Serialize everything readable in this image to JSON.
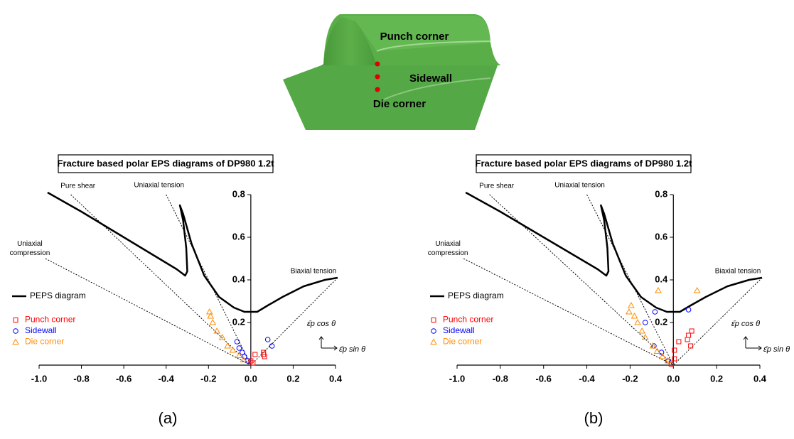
{
  "figure": {
    "labels": [
      "Punch corner",
      "Sidewall",
      "Die corner"
    ]
  },
  "captions": [
    "(a)",
    "(b)"
  ],
  "chart_data": [
    {
      "type": "scatter",
      "title": "Fracture based polar EPS diagrams of DP980 1.2t",
      "xlim": [
        -1.0,
        0.4
      ],
      "ylim": [
        0,
        0.8
      ],
      "xticks": [
        {
          "value": -1.0,
          "label": "-1.0"
        },
        -0.8,
        -0.6,
        -0.4,
        -0.2,
        {
          "value": 0,
          "label": "0.0"
        },
        0.2,
        0.4
      ],
      "yticks": [
        0.2,
        0.4,
        0.6,
        0.8
      ],
      "axis_labels": {
        "y": "ε̄p cos θ",
        "x": "ε̄p sin θ"
      },
      "reference_lines": [
        {
          "name": "Pure shear",
          "x": [
            -0.85,
            0
          ],
          "y": [
            0.8,
            0
          ]
        },
        {
          "name": "Uniaxial tension",
          "x": [
            -0.4,
            0
          ],
          "y": [
            0.8,
            0
          ]
        },
        {
          "name": "Uniaxial compression",
          "x": [
            -0.97,
            0
          ],
          "y": [
            0.5,
            0
          ]
        },
        {
          "name": "Biaxial tension",
          "x": [
            0.41,
            0
          ],
          "y": [
            0.41,
            0
          ]
        }
      ],
      "series": [
        {
          "name": "PEPS diagram",
          "color": "#000000",
          "marker": "line",
          "x": [
            -0.96,
            -0.8,
            -0.6,
            -0.45,
            -0.35,
            -0.31,
            -0.3,
            -0.305,
            -0.32,
            -0.335,
            -0.32,
            -0.28,
            -0.22,
            -0.15,
            -0.08,
            -0.03,
            0.0,
            0.03,
            0.08,
            0.15,
            0.25,
            0.35,
            0.41
          ],
          "y": [
            0.81,
            0.72,
            0.6,
            0.51,
            0.45,
            0.42,
            0.44,
            0.55,
            0.68,
            0.75,
            0.71,
            0.57,
            0.42,
            0.32,
            0.27,
            0.25,
            0.25,
            0.25,
            0.28,
            0.32,
            0.37,
            0.4,
            0.41
          ]
        },
        {
          "name": "Punch corner",
          "color": "#ff0000",
          "marker": "square",
          "x": [
            0.02,
            0.06,
            0.06,
            0.065,
            0.0,
            0.01
          ],
          "y": [
            0.05,
            0.06,
            0.05,
            0.04,
            0.02,
            0.01
          ]
        },
        {
          "name": "Sidewall",
          "color": "#0000ff",
          "marker": "circle",
          "x": [
            0.08,
            0.1,
            -0.065,
            -0.055,
            -0.04,
            -0.03,
            -0.015
          ],
          "y": [
            0.12,
            0.09,
            0.11,
            0.08,
            0.06,
            0.04,
            0.02
          ]
        },
        {
          "name": "Die corner",
          "color": "#ff8c00",
          "marker": "triangle",
          "x": [
            -0.195,
            -0.19,
            -0.18,
            -0.16,
            -0.135,
            -0.11,
            -0.085,
            -0.055,
            -0.035
          ],
          "y": [
            0.25,
            0.23,
            0.2,
            0.16,
            0.13,
            0.09,
            0.07,
            0.045,
            0.025
          ]
        }
      ]
    },
    {
      "type": "scatter",
      "title": "Fracture based polar EPS diagrams of DP980 1.2t",
      "xlim": [
        -1.0,
        0.4
      ],
      "ylim": [
        0,
        0.8
      ],
      "xticks": [
        {
          "value": -1.0,
          "label": "-1.0"
        },
        -0.8,
        -0.6,
        -0.4,
        -0.2,
        {
          "value": 0,
          "label": "0.0"
        },
        0.2,
        0.4
      ],
      "yticks": [
        0.2,
        0.4,
        0.6,
        0.8
      ],
      "axis_labels": {
        "y": "ε̄p cos θ",
        "x": "ε̄p sin θ"
      },
      "reference_lines": [
        {
          "name": "Pure shear",
          "x": [
            -0.85,
            0
          ],
          "y": [
            0.8,
            0
          ]
        },
        {
          "name": "Uniaxial tension",
          "x": [
            -0.4,
            0
          ],
          "y": [
            0.8,
            0
          ]
        },
        {
          "name": "Uniaxial compression",
          "x": [
            -0.97,
            0
          ],
          "y": [
            0.5,
            0
          ]
        },
        {
          "name": "Biaxial tension",
          "x": [
            0.41,
            0
          ],
          "y": [
            0.41,
            0
          ]
        }
      ],
      "series": [
        {
          "name": "PEPS diagram",
          "color": "#000000",
          "marker": "line",
          "x": [
            -0.96,
            -0.8,
            -0.6,
            -0.45,
            -0.35,
            -0.31,
            -0.3,
            -0.305,
            -0.32,
            -0.335,
            -0.32,
            -0.28,
            -0.22,
            -0.15,
            -0.08,
            -0.03,
            0.0,
            0.03,
            0.08,
            0.15,
            0.25,
            0.35,
            0.41
          ],
          "y": [
            0.81,
            0.72,
            0.6,
            0.51,
            0.45,
            0.42,
            0.44,
            0.55,
            0.68,
            0.75,
            0.71,
            0.57,
            0.42,
            0.32,
            0.27,
            0.25,
            0.25,
            0.25,
            0.28,
            0.32,
            0.37,
            0.4,
            0.41
          ]
        },
        {
          "name": "Punch corner",
          "color": "#ff0000",
          "marker": "square",
          "x": [
            0.07,
            0.085,
            0.065,
            0.08,
            0.025,
            0.005,
            0.005,
            -0.01
          ],
          "y": [
            0.14,
            0.16,
            0.12,
            0.09,
            0.11,
            0.07,
            0.03,
            0.005
          ]
        },
        {
          "name": "Sidewall",
          "color": "#0000ff",
          "marker": "circle",
          "x": [
            0.07,
            -0.085,
            -0.13,
            -0.09,
            -0.055,
            -0.025
          ],
          "y": [
            0.26,
            0.25,
            0.2,
            0.09,
            0.06,
            0.02
          ]
        },
        {
          "name": "Die corner",
          "color": "#ff8c00",
          "marker": "triangle",
          "x": [
            -0.07,
            0.11,
            -0.195,
            -0.205,
            -0.18,
            -0.165,
            -0.145,
            -0.13,
            -0.095,
            -0.075,
            -0.05,
            -0.025
          ],
          "y": [
            0.35,
            0.35,
            0.28,
            0.25,
            0.23,
            0.2,
            0.16,
            0.13,
            0.09,
            0.065,
            0.04,
            0.02
          ]
        }
      ]
    }
  ]
}
